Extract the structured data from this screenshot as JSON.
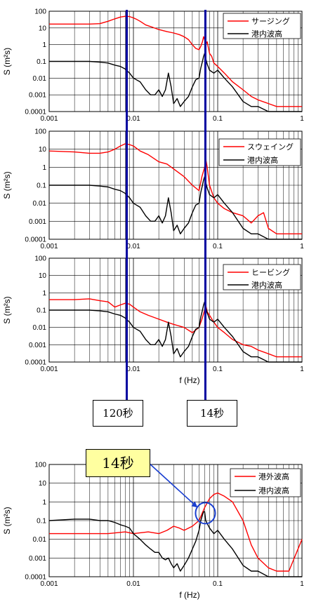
{
  "colors": {
    "red": "#ff0000",
    "black": "#000000",
    "marker": "#0000a0",
    "callout_bg": "#ffffa0",
    "circle": "#1a3fd0"
  },
  "markers": [
    {
      "label": "120秒",
      "x": 0.00833
    },
    {
      "label": "14秒",
      "x": 0.0714
    }
  ],
  "annotation": {
    "label": "14秒",
    "x": 0.0714
  },
  "chart_data": [
    {
      "type": "line",
      "xscale": "log",
      "yscale": "log",
      "xlim": [
        0.001,
        1
      ],
      "ylim": [
        0.0001,
        100
      ],
      "xticks": [
        "0.001",
        "0.01",
        "0.1",
        "1"
      ],
      "yticks": [
        "0.0001",
        "0.001",
        "0.01",
        "0.1",
        "1",
        "10",
        "100"
      ],
      "xlabel": "",
      "ylabel": "S (m²s)",
      "legend": "top-right",
      "series": [
        {
          "name": "サージング",
          "color": "#ff0000",
          "x": [
            0.001,
            0.002,
            0.003,
            0.004,
            0.005,
            0.006,
            0.007,
            0.008,
            0.009,
            0.01,
            0.011,
            0.012,
            0.014,
            0.016,
            0.02,
            0.025,
            0.03,
            0.035,
            0.04,
            0.045,
            0.05,
            0.055,
            0.06,
            0.063,
            0.066,
            0.068,
            0.07,
            0.072,
            0.075,
            0.08,
            0.085,
            0.09,
            0.1,
            0.12,
            0.15,
            0.2,
            0.25,
            0.3,
            0.4,
            0.5,
            0.7,
            1.0
          ],
          "y": [
            17,
            17,
            17,
            18,
            25,
            35,
            45,
            50,
            48,
            40,
            32,
            25,
            15,
            12,
            8,
            6,
            5,
            4,
            3,
            2,
            1,
            0.6,
            0.5,
            0.8,
            1.5,
            3,
            2,
            1,
            1.5,
            0.3,
            0.2,
            0.08,
            0.05,
            0.02,
            0.006,
            0.002,
            0.0008,
            0.0005,
            0.0003,
            0.0002,
            0.0002,
            0.0002
          ]
        },
        {
          "name": "港内波高",
          "color": "#000000",
          "x": [
            0.001,
            0.002,
            0.003,
            0.004,
            0.005,
            0.006,
            0.007,
            0.008,
            0.009,
            0.01,
            0.012,
            0.014,
            0.016,
            0.018,
            0.02,
            0.022,
            0.024,
            0.026,
            0.028,
            0.03,
            0.033,
            0.036,
            0.04,
            0.045,
            0.05,
            0.055,
            0.06,
            0.063,
            0.066,
            0.068,
            0.07,
            0.072,
            0.075,
            0.08,
            0.09,
            0.1,
            0.12,
            0.15,
            0.2,
            0.25,
            0.3,
            0.4,
            0.5,
            0.7,
            1.0
          ],
          "y": [
            0.1,
            0.1,
            0.1,
            0.09,
            0.08,
            0.06,
            0.05,
            0.035,
            0.02,
            0.01,
            0.006,
            0.002,
            0.001,
            0.001,
            0.002,
            0.0008,
            0.002,
            0.02,
            0.003,
            0.0003,
            0.0006,
            0.0002,
            0.0004,
            0.0008,
            0.003,
            0.008,
            0.01,
            0.04,
            0.1,
            0.2,
            0.3,
            0.15,
            0.07,
            0.03,
            0.02,
            0.03,
            0.01,
            0.003,
            0.0004,
            0.0002,
            0.0002,
            0.0001,
            0.0001,
            0.0001,
            0.0001
          ]
        }
      ]
    },
    {
      "type": "line",
      "xscale": "log",
      "yscale": "log",
      "xlim": [
        0.001,
        1
      ],
      "ylim": [
        0.0001,
        100
      ],
      "xticks": [
        "0.001",
        "0.01",
        "0.1",
        "1"
      ],
      "yticks": [
        "0.0001",
        "0.001",
        "0.01",
        "0.1",
        "1",
        "10",
        "100"
      ],
      "xlabel": "",
      "ylabel": "S (m²s)",
      "legend": "top-right",
      "series": [
        {
          "name": "スウェイング",
          "color": "#ff0000",
          "x": [
            0.001,
            0.002,
            0.003,
            0.004,
            0.005,
            0.006,
            0.007,
            0.008,
            0.009,
            0.01,
            0.012,
            0.015,
            0.02,
            0.025,
            0.03,
            0.04,
            0.05,
            0.06,
            0.065,
            0.07,
            0.072,
            0.075,
            0.08,
            0.09,
            0.1,
            0.12,
            0.15,
            0.2,
            0.25,
            0.3,
            0.35,
            0.4,
            0.5,
            0.7,
            1.0
          ],
          "y": [
            8,
            7,
            6,
            6,
            7,
            10,
            15,
            20,
            18,
            15,
            8,
            5,
            2,
            1.5,
            0.8,
            0.3,
            0.1,
            0.05,
            0.3,
            1,
            3,
            1,
            0.1,
            0.02,
            0.01,
            0.005,
            0.003,
            0.002,
            0.0008,
            0.002,
            0.003,
            0.0004,
            0.0002,
            0.0002,
            0.0002
          ]
        },
        {
          "name": "港内波高",
          "color": "#000000",
          "x": [
            0.001,
            0.002,
            0.003,
            0.004,
            0.005,
            0.006,
            0.007,
            0.008,
            0.009,
            0.01,
            0.012,
            0.014,
            0.016,
            0.018,
            0.02,
            0.022,
            0.024,
            0.026,
            0.028,
            0.03,
            0.033,
            0.036,
            0.04,
            0.045,
            0.05,
            0.055,
            0.06,
            0.063,
            0.066,
            0.068,
            0.07,
            0.072,
            0.075,
            0.08,
            0.09,
            0.1,
            0.12,
            0.15,
            0.2,
            0.25,
            0.3,
            0.4,
            0.5,
            0.7,
            1.0
          ],
          "y": [
            0.1,
            0.1,
            0.1,
            0.09,
            0.08,
            0.06,
            0.05,
            0.035,
            0.02,
            0.01,
            0.006,
            0.002,
            0.001,
            0.001,
            0.002,
            0.0008,
            0.002,
            0.02,
            0.003,
            0.0003,
            0.0006,
            0.0002,
            0.0004,
            0.0008,
            0.003,
            0.008,
            0.01,
            0.04,
            0.1,
            0.2,
            0.3,
            0.15,
            0.07,
            0.03,
            0.02,
            0.03,
            0.01,
            0.003,
            0.0004,
            0.0002,
            0.0002,
            0.0001,
            0.0001,
            0.0001,
            0.0001
          ]
        }
      ]
    },
    {
      "type": "line",
      "xscale": "log",
      "yscale": "log",
      "xlim": [
        0.001,
        1
      ],
      "ylim": [
        0.0001,
        100
      ],
      "xticks": [
        "0.001",
        "0.01",
        "0.1",
        "1"
      ],
      "yticks": [
        "0.0001",
        "0.001",
        "0.01",
        "0.1",
        "1",
        "10",
        "100"
      ],
      "xlabel": "f (Hz)",
      "ylabel": "S (m²s)",
      "legend": "top-right",
      "series": [
        {
          "name": "ヒービング",
          "color": "#ff0000",
          "x": [
            0.001,
            0.002,
            0.003,
            0.004,
            0.005,
            0.006,
            0.007,
            0.008,
            0.009,
            0.01,
            0.012,
            0.015,
            0.02,
            0.025,
            0.03,
            0.04,
            0.05,
            0.06,
            0.065,
            0.07,
            0.072,
            0.075,
            0.08,
            0.09,
            0.1,
            0.12,
            0.15,
            0.2,
            0.25,
            0.3,
            0.4,
            0.5,
            0.7,
            1.0
          ],
          "y": [
            0.4,
            0.4,
            0.45,
            0.35,
            0.3,
            0.15,
            0.2,
            0.25,
            0.22,
            0.15,
            0.08,
            0.05,
            0.03,
            0.02,
            0.015,
            0.01,
            0.005,
            0.01,
            0.03,
            0.1,
            0.2,
            0.08,
            0.05,
            0.02,
            0.01,
            0.005,
            0.002,
            0.001,
            0.0008,
            0.0005,
            0.0003,
            0.0002,
            0.0002,
            0.0002
          ]
        },
        {
          "name": "港内波高",
          "color": "#000000",
          "x": [
            0.001,
            0.002,
            0.003,
            0.004,
            0.005,
            0.006,
            0.007,
            0.008,
            0.009,
            0.01,
            0.012,
            0.014,
            0.016,
            0.018,
            0.02,
            0.022,
            0.024,
            0.026,
            0.028,
            0.03,
            0.033,
            0.036,
            0.04,
            0.045,
            0.05,
            0.055,
            0.06,
            0.063,
            0.066,
            0.068,
            0.07,
            0.072,
            0.075,
            0.08,
            0.09,
            0.1,
            0.12,
            0.15,
            0.2,
            0.25,
            0.3,
            0.4,
            0.5,
            0.7,
            1.0
          ],
          "y": [
            0.1,
            0.1,
            0.1,
            0.09,
            0.08,
            0.06,
            0.05,
            0.035,
            0.02,
            0.01,
            0.006,
            0.002,
            0.001,
            0.001,
            0.002,
            0.0008,
            0.002,
            0.02,
            0.003,
            0.0003,
            0.0006,
            0.0002,
            0.0004,
            0.0008,
            0.003,
            0.008,
            0.01,
            0.04,
            0.1,
            0.2,
            0.3,
            0.15,
            0.07,
            0.03,
            0.02,
            0.03,
            0.01,
            0.003,
            0.0004,
            0.0002,
            0.0002,
            0.0001,
            0.0001,
            0.0001,
            0.0001
          ]
        }
      ]
    },
    {
      "type": "line",
      "xscale": "log",
      "yscale": "log",
      "xlim": [
        0.001,
        1
      ],
      "ylim": [
        0.0001,
        100
      ],
      "xticks": [
        "0.001",
        "0.01",
        "0.1",
        "1"
      ],
      "yticks": [
        "0.0001",
        "0.001",
        "0.01",
        "0.1",
        "1",
        "10",
        "100"
      ],
      "xlabel": "f (Hz)",
      "ylabel": "S (m²s)",
      "legend": "top-right",
      "series": [
        {
          "name": "港外波高",
          "color": "#ff0000",
          "x": [
            0.001,
            0.002,
            0.003,
            0.005,
            0.008,
            0.01,
            0.015,
            0.02,
            0.025,
            0.03,
            0.035,
            0.04,
            0.05,
            0.06,
            0.07,
            0.08,
            0.09,
            0.1,
            0.12,
            0.15,
            0.2,
            0.25,
            0.3,
            0.4,
            0.5,
            0.7,
            1.0
          ],
          "y": [
            0.02,
            0.02,
            0.02,
            0.02,
            0.025,
            0.02,
            0.025,
            0.02,
            0.03,
            0.05,
            0.04,
            0.03,
            0.05,
            0.1,
            0.5,
            1.5,
            2.5,
            3,
            2,
            1,
            0.1,
            0.005,
            0.001,
            0.0003,
            0.0002,
            0.0002,
            0.01
          ]
        },
        {
          "name": "港内波高",
          "color": "#000000",
          "x": [
            0.001,
            0.002,
            0.003,
            0.004,
            0.005,
            0.006,
            0.007,
            0.008,
            0.009,
            0.01,
            0.012,
            0.014,
            0.016,
            0.018,
            0.02,
            0.022,
            0.024,
            0.026,
            0.028,
            0.03,
            0.033,
            0.036,
            0.04,
            0.045,
            0.05,
            0.055,
            0.06,
            0.063,
            0.066,
            0.068,
            0.07,
            0.072,
            0.075,
            0.08,
            0.09,
            0.1,
            0.12,
            0.15,
            0.2,
            0.25,
            0.3,
            0.4,
            0.5,
            0.7,
            1.0
          ],
          "y": [
            0.1,
            0.12,
            0.12,
            0.1,
            0.1,
            0.08,
            0.06,
            0.05,
            0.04,
            0.02,
            0.01,
            0.005,
            0.003,
            0.002,
            0.002,
            0.001,
            0.0008,
            0.001,
            0.0005,
            0.0003,
            0.0005,
            0.0002,
            0.0004,
            0.001,
            0.003,
            0.008,
            0.03,
            0.1,
            0.2,
            0.3,
            0.3,
            0.1,
            0.07,
            0.04,
            0.02,
            0.03,
            0.01,
            0.003,
            0.0004,
            0.0002,
            0.0002,
            0.0001,
            0.0001,
            0.0001,
            0.0001
          ]
        }
      ]
    }
  ]
}
